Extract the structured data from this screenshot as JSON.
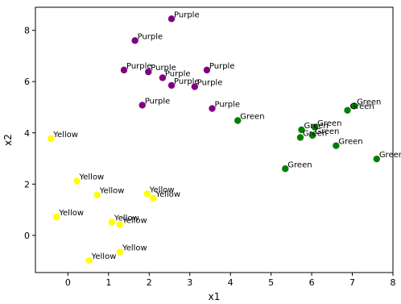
{
  "chart_data": {
    "type": "scatter",
    "title": "",
    "xlabel": "x1",
    "ylabel": "x2",
    "xlim": [
      -0.8,
      8.0
    ],
    "ylim": [
      -1.45,
      8.9
    ],
    "xticks": [
      0,
      1,
      2,
      3,
      4,
      5,
      6,
      7,
      8
    ],
    "yticks": [
      0,
      2,
      4,
      6,
      8
    ],
    "grid": false,
    "legend": "none",
    "colors": {
      "Purple": "#800080",
      "Green": "#008000",
      "Yellow": "#ffff00"
    },
    "points": [
      {
        "x": 2.55,
        "y": 8.45,
        "label": "Purple"
      },
      {
        "x": 1.65,
        "y": 7.6,
        "label": "Purple"
      },
      {
        "x": 1.38,
        "y": 6.45,
        "label": "Purple"
      },
      {
        "x": 1.98,
        "y": 6.38,
        "label": "Purple"
      },
      {
        "x": 2.33,
        "y": 6.15,
        "label": "Purple"
      },
      {
        "x": 3.42,
        "y": 6.45,
        "label": "Purple"
      },
      {
        "x": 2.55,
        "y": 5.85,
        "label": "Purple"
      },
      {
        "x": 3.12,
        "y": 5.8,
        "label": "Purple"
      },
      {
        "x": 1.83,
        "y": 5.08,
        "label": "Purple"
      },
      {
        "x": 3.55,
        "y": 4.95,
        "label": "Purple"
      },
      {
        "x": 4.18,
        "y": 4.48,
        "label": "Green"
      },
      {
        "x": 7.05,
        "y": 5.05,
        "label": "Green"
      },
      {
        "x": 6.88,
        "y": 4.88,
        "label": "Green"
      },
      {
        "x": 6.08,
        "y": 4.22,
        "label": "Green"
      },
      {
        "x": 5.75,
        "y": 4.12,
        "label": "Green"
      },
      {
        "x": 6.02,
        "y": 3.9,
        "label": "Green"
      },
      {
        "x": 5.72,
        "y": 3.82,
        "label": "Green"
      },
      {
        "x": 6.6,
        "y": 3.5,
        "label": "Green"
      },
      {
        "x": 7.6,
        "y": 2.98,
        "label": "Green"
      },
      {
        "x": 5.35,
        "y": 2.6,
        "label": "Green"
      },
      {
        "x": -0.42,
        "y": 3.78,
        "label": "Yellow"
      },
      {
        "x": 0.22,
        "y": 2.12,
        "label": "Yellow"
      },
      {
        "x": 0.72,
        "y": 1.58,
        "label": "Yellow"
      },
      {
        "x": 1.95,
        "y": 1.62,
        "label": "Yellow"
      },
      {
        "x": 2.1,
        "y": 1.45,
        "label": "Yellow"
      },
      {
        "x": -0.28,
        "y": 0.72,
        "label": "Yellow"
      },
      {
        "x": 1.08,
        "y": 0.52,
        "label": "Yellow"
      },
      {
        "x": 1.28,
        "y": 0.42,
        "label": "Yellow"
      },
      {
        "x": 1.28,
        "y": -0.65,
        "label": "Yellow"
      },
      {
        "x": 0.52,
        "y": -0.98,
        "label": "Yellow"
      }
    ]
  }
}
